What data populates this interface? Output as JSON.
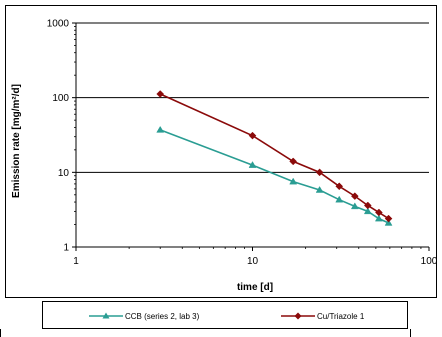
{
  "colors": {
    "ccb": "#2a9d93",
    "cu": "#8b0a0a",
    "grid": "#000000"
  },
  "chart_data": {
    "type": "line",
    "xscale": "log",
    "yscale": "log",
    "xlim": [
      1,
      100
    ],
    "ylim": [
      1,
      1000
    ],
    "xlabel": "time [d]",
    "ylabel": "Emission rate [mg/m²/d]",
    "xticks": [
      "1",
      "10",
      "100"
    ],
    "yticks": [
      "1",
      "10",
      "100",
      "1000"
    ],
    "grid": "horizontal",
    "legend_position": "bottom",
    "series": [
      {
        "name": "CCB (series 2, lab 3)",
        "marker": "triangle",
        "color": "#2a9d93",
        "x": [
          3,
          10,
          17,
          24,
          31,
          38,
          45,
          52,
          59
        ],
        "y": [
          37,
          12.5,
          7.5,
          5.8,
          4.3,
          3.5,
          3.0,
          2.4,
          2.1
        ]
      },
      {
        "name": "Cu/Triazole 1",
        "marker": "diamond",
        "color": "#8b0a0a",
        "x": [
          3,
          10,
          17,
          24,
          31,
          38,
          45,
          52,
          59
        ],
        "y": [
          112,
          31,
          14,
          10,
          6.5,
          4.8,
          3.6,
          2.9,
          2.4
        ]
      }
    ]
  }
}
